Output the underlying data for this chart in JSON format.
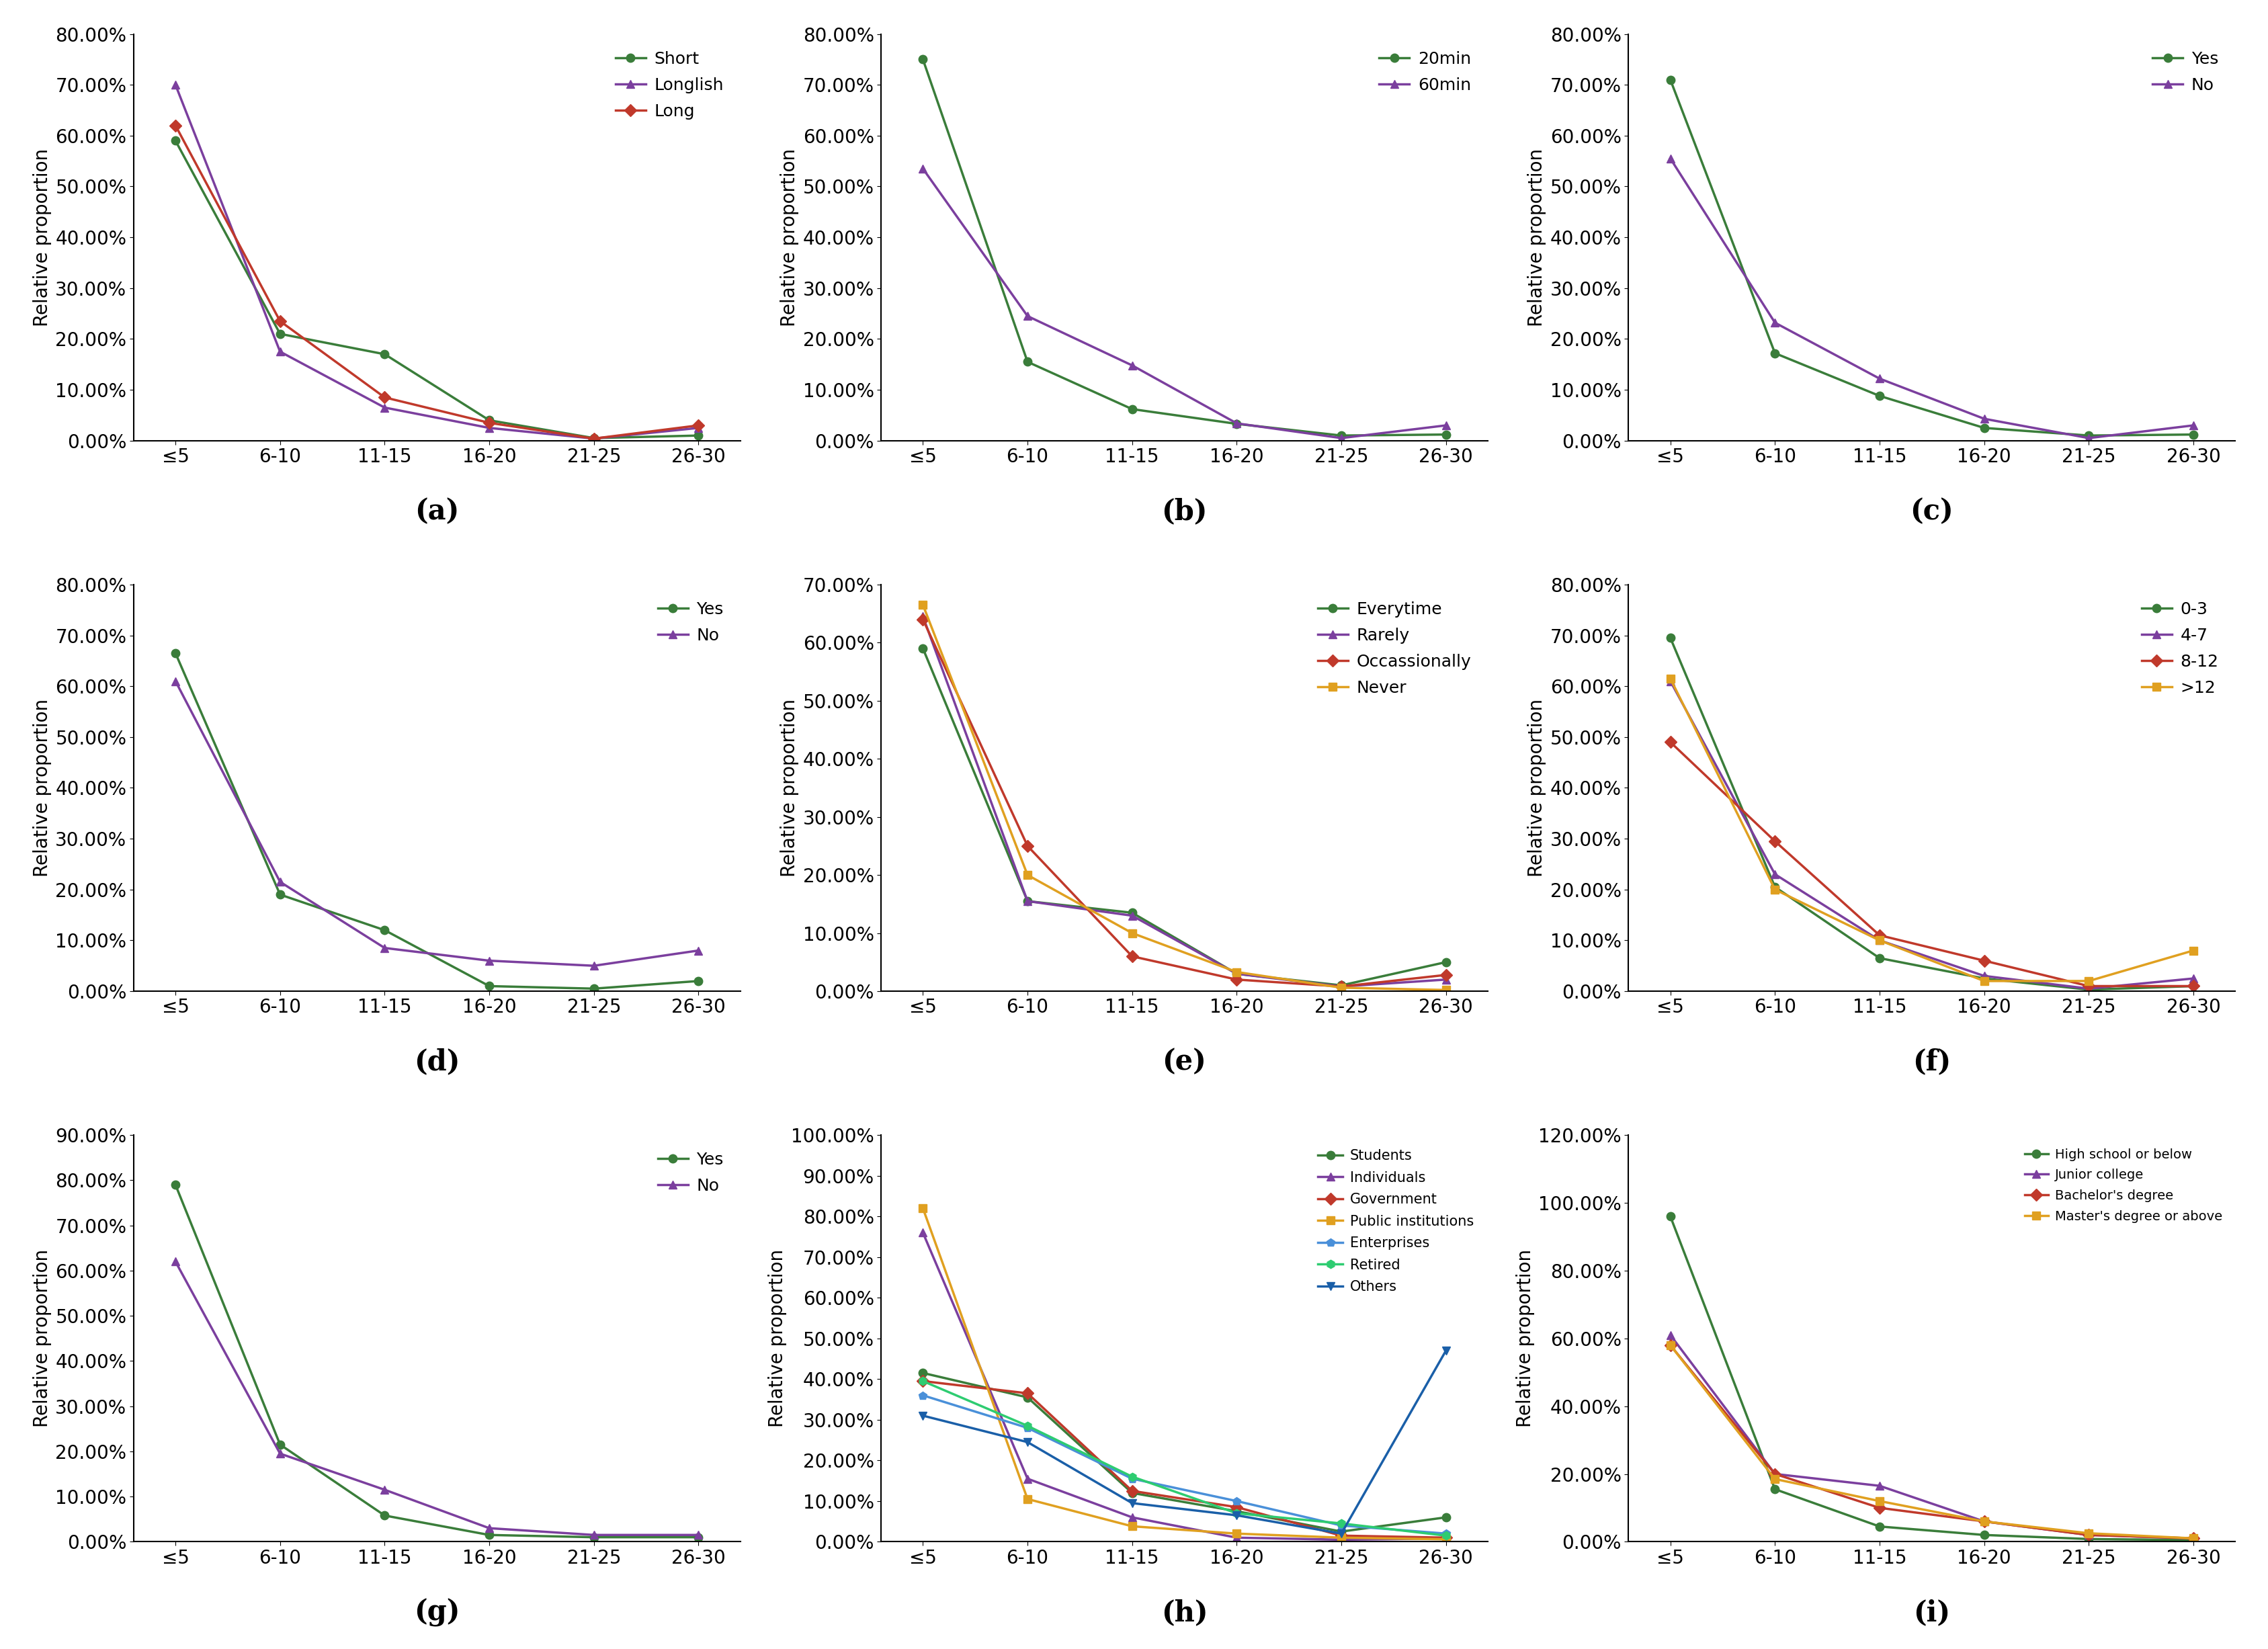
{
  "x_labels": [
    "≤5",
    "6-10",
    "11-15",
    "16-20",
    "21-25",
    "26-30"
  ],
  "x_positions": [
    0,
    1,
    2,
    3,
    4,
    5
  ],
  "subplots": [
    {
      "label": "(a)",
      "ylim": [
        0,
        0.8
      ],
      "yticks": [
        0.0,
        0.1,
        0.2,
        0.3,
        0.4,
        0.5,
        0.6,
        0.7,
        0.8
      ],
      "series": [
        {
          "name": "Short",
          "color": "#3a7d3a",
          "marker": "o",
          "data": [
            0.59,
            0.21,
            0.17,
            0.04,
            0.005,
            0.01
          ]
        },
        {
          "name": "Longlish",
          "color": "#7b3f9e",
          "marker": "^",
          "data": [
            0.7,
            0.175,
            0.065,
            0.025,
            0.004,
            0.025
          ]
        },
        {
          "name": "Long",
          "color": "#c0392b",
          "marker": "D",
          "data": [
            0.62,
            0.235,
            0.085,
            0.035,
            0.004,
            0.03
          ]
        }
      ]
    },
    {
      "label": "(b)",
      "ylim": [
        0,
        0.8
      ],
      "yticks": [
        0.0,
        0.1,
        0.2,
        0.3,
        0.4,
        0.5,
        0.6,
        0.7,
        0.8
      ],
      "series": [
        {
          "name": "20min",
          "color": "#3a7d3a",
          "marker": "o",
          "data": [
            0.75,
            0.155,
            0.062,
            0.033,
            0.01,
            0.012
          ]
        },
        {
          "name": "60min",
          "color": "#7b3f9e",
          "marker": "^",
          "data": [
            0.535,
            0.245,
            0.148,
            0.034,
            0.005,
            0.03
          ]
        }
      ]
    },
    {
      "label": "(c)",
      "ylim": [
        0,
        0.8
      ],
      "yticks": [
        0.0,
        0.1,
        0.2,
        0.3,
        0.4,
        0.5,
        0.6,
        0.7,
        0.8
      ],
      "series": [
        {
          "name": "Yes",
          "color": "#3a7d3a",
          "marker": "o",
          "data": [
            0.71,
            0.172,
            0.088,
            0.025,
            0.01,
            0.012
          ]
        },
        {
          "name": "No",
          "color": "#7b3f9e",
          "marker": "^",
          "data": [
            0.555,
            0.232,
            0.122,
            0.043,
            0.005,
            0.03
          ]
        }
      ]
    },
    {
      "label": "(d)",
      "ylim": [
        0,
        0.8
      ],
      "yticks": [
        0.0,
        0.1,
        0.2,
        0.3,
        0.4,
        0.5,
        0.6,
        0.7,
        0.8
      ],
      "series": [
        {
          "name": "Yes",
          "color": "#3a7d3a",
          "marker": "o",
          "data": [
            0.665,
            0.19,
            0.12,
            0.01,
            0.005,
            0.02
          ]
        },
        {
          "name": "No",
          "color": "#7b3f9e",
          "marker": "^",
          "data": [
            0.61,
            0.215,
            0.085,
            0.06,
            0.05,
            0.08
          ]
        }
      ]
    },
    {
      "label": "(e)",
      "ylim": [
        0,
        0.7
      ],
      "yticks": [
        0.0,
        0.1,
        0.2,
        0.3,
        0.4,
        0.5,
        0.6,
        0.7
      ],
      "series": [
        {
          "name": "Everytime",
          "color": "#3a7d3a",
          "marker": "o",
          "data": [
            0.59,
            0.155,
            0.135,
            0.03,
            0.01,
            0.05
          ]
        },
        {
          "name": "Rarely",
          "color": "#7b3f9e",
          "marker": "^",
          "data": [
            0.645,
            0.155,
            0.13,
            0.03,
            0.008,
            0.02
          ]
        },
        {
          "name": "Occassionally",
          "color": "#c0392b",
          "marker": "D",
          "data": [
            0.64,
            0.25,
            0.06,
            0.02,
            0.008,
            0.028
          ]
        },
        {
          "name": "Never",
          "color": "#e0a020",
          "marker": "s",
          "data": [
            0.665,
            0.2,
            0.1,
            0.033,
            0.006,
            0.002
          ]
        }
      ]
    },
    {
      "label": "(f)",
      "ylim": [
        0,
        0.8
      ],
      "yticks": [
        0.0,
        0.1,
        0.2,
        0.3,
        0.4,
        0.5,
        0.6,
        0.7,
        0.8
      ],
      "series": [
        {
          "name": "0-3",
          "color": "#3a7d3a",
          "marker": "o",
          "data": [
            0.695,
            0.205,
            0.065,
            0.025,
            0.003,
            0.01
          ]
        },
        {
          "name": "4-7",
          "color": "#7b3f9e",
          "marker": "^",
          "data": [
            0.61,
            0.23,
            0.1,
            0.03,
            0.005,
            0.025
          ]
        },
        {
          "name": "8-12",
          "color": "#c0392b",
          "marker": "D",
          "data": [
            0.49,
            0.295,
            0.11,
            0.06,
            0.01,
            0.01
          ]
        },
        {
          "name": ">12",
          "color": "#e0a020",
          "marker": "s",
          "data": [
            0.615,
            0.2,
            0.1,
            0.02,
            0.02,
            0.08
          ]
        }
      ]
    },
    {
      "label": "(g)",
      "ylim": [
        0,
        0.9
      ],
      "yticks": [
        0.0,
        0.1,
        0.2,
        0.3,
        0.4,
        0.5,
        0.6,
        0.7,
        0.8,
        0.9
      ],
      "series": [
        {
          "name": "Yes",
          "color": "#3a7d3a",
          "marker": "o",
          "data": [
            0.79,
            0.215,
            0.058,
            0.015,
            0.01,
            0.01
          ]
        },
        {
          "name": "No",
          "color": "#7b3f9e",
          "marker": "^",
          "data": [
            0.62,
            0.195,
            0.115,
            0.03,
            0.015,
            0.015
          ]
        }
      ]
    },
    {
      "label": "(h)",
      "ylim": [
        0,
        1.0
      ],
      "yticks": [
        0.0,
        0.1,
        0.2,
        0.3,
        0.4,
        0.5,
        0.6,
        0.7,
        0.8,
        0.9,
        1.0
      ],
      "series": [
        {
          "name": "Students",
          "color": "#3a7d3a",
          "marker": "o",
          "data": [
            0.415,
            0.355,
            0.12,
            0.075,
            0.025,
            0.06
          ]
        },
        {
          "name": "Individuals",
          "color": "#7b3f9e",
          "marker": "^",
          "data": [
            0.76,
            0.155,
            0.06,
            0.01,
            0.005,
            0.008
          ]
        },
        {
          "name": "Government",
          "color": "#c0392b",
          "marker": "D",
          "data": [
            0.395,
            0.365,
            0.125,
            0.085,
            0.015,
            0.01
          ]
        },
        {
          "name": "Public institutions",
          "color": "#e0a020",
          "marker": "s",
          "data": [
            0.82,
            0.105,
            0.038,
            0.02,
            0.01,
            0.006
          ]
        },
        {
          "name": "Enterprises",
          "color": "#4a90d9",
          "marker": "p",
          "data": [
            0.36,
            0.28,
            0.155,
            0.1,
            0.04,
            0.02
          ]
        },
        {
          "name": "Retired",
          "color": "#2ecc71",
          "marker": "h",
          "data": [
            0.395,
            0.285,
            0.16,
            0.07,
            0.045,
            0.015
          ]
        },
        {
          "name": "Others",
          "color": "#1a5fa8",
          "marker": "v",
          "data": [
            0.31,
            0.245,
            0.095,
            0.065,
            0.02,
            0.47
          ]
        }
      ]
    },
    {
      "label": "(i)",
      "ylim": [
        0,
        1.2
      ],
      "yticks": [
        0.0,
        0.2,
        0.4,
        0.6,
        0.8,
        1.0,
        1.2
      ],
      "series": [
        {
          "name": "High school or below",
          "color": "#3a7d3a",
          "marker": "o",
          "data": [
            0.96,
            0.155,
            0.045,
            0.02,
            0.008,
            0.005
          ]
        },
        {
          "name": "Junior college",
          "color": "#7b3f9e",
          "marker": "^",
          "data": [
            0.61,
            0.2,
            0.165,
            0.06,
            0.02,
            0.01
          ]
        },
        {
          "name": "Bachelor's degree",
          "color": "#c0392b",
          "marker": "D",
          "data": [
            0.58,
            0.2,
            0.1,
            0.06,
            0.02,
            0.01
          ]
        },
        {
          "name": "Master's degree or above",
          "color": "#e0a020",
          "marker": "s",
          "data": [
            0.58,
            0.185,
            0.12,
            0.06,
            0.025,
            0.01
          ]
        }
      ]
    }
  ],
  "ylabel": "Relative proportion",
  "background_color": "#ffffff",
  "line_width": 2.5,
  "marker_size": 9,
  "font_size_tick": 20,
  "font_size_ylabel": 20,
  "font_size_legend": 18,
  "font_size_caption": 30
}
